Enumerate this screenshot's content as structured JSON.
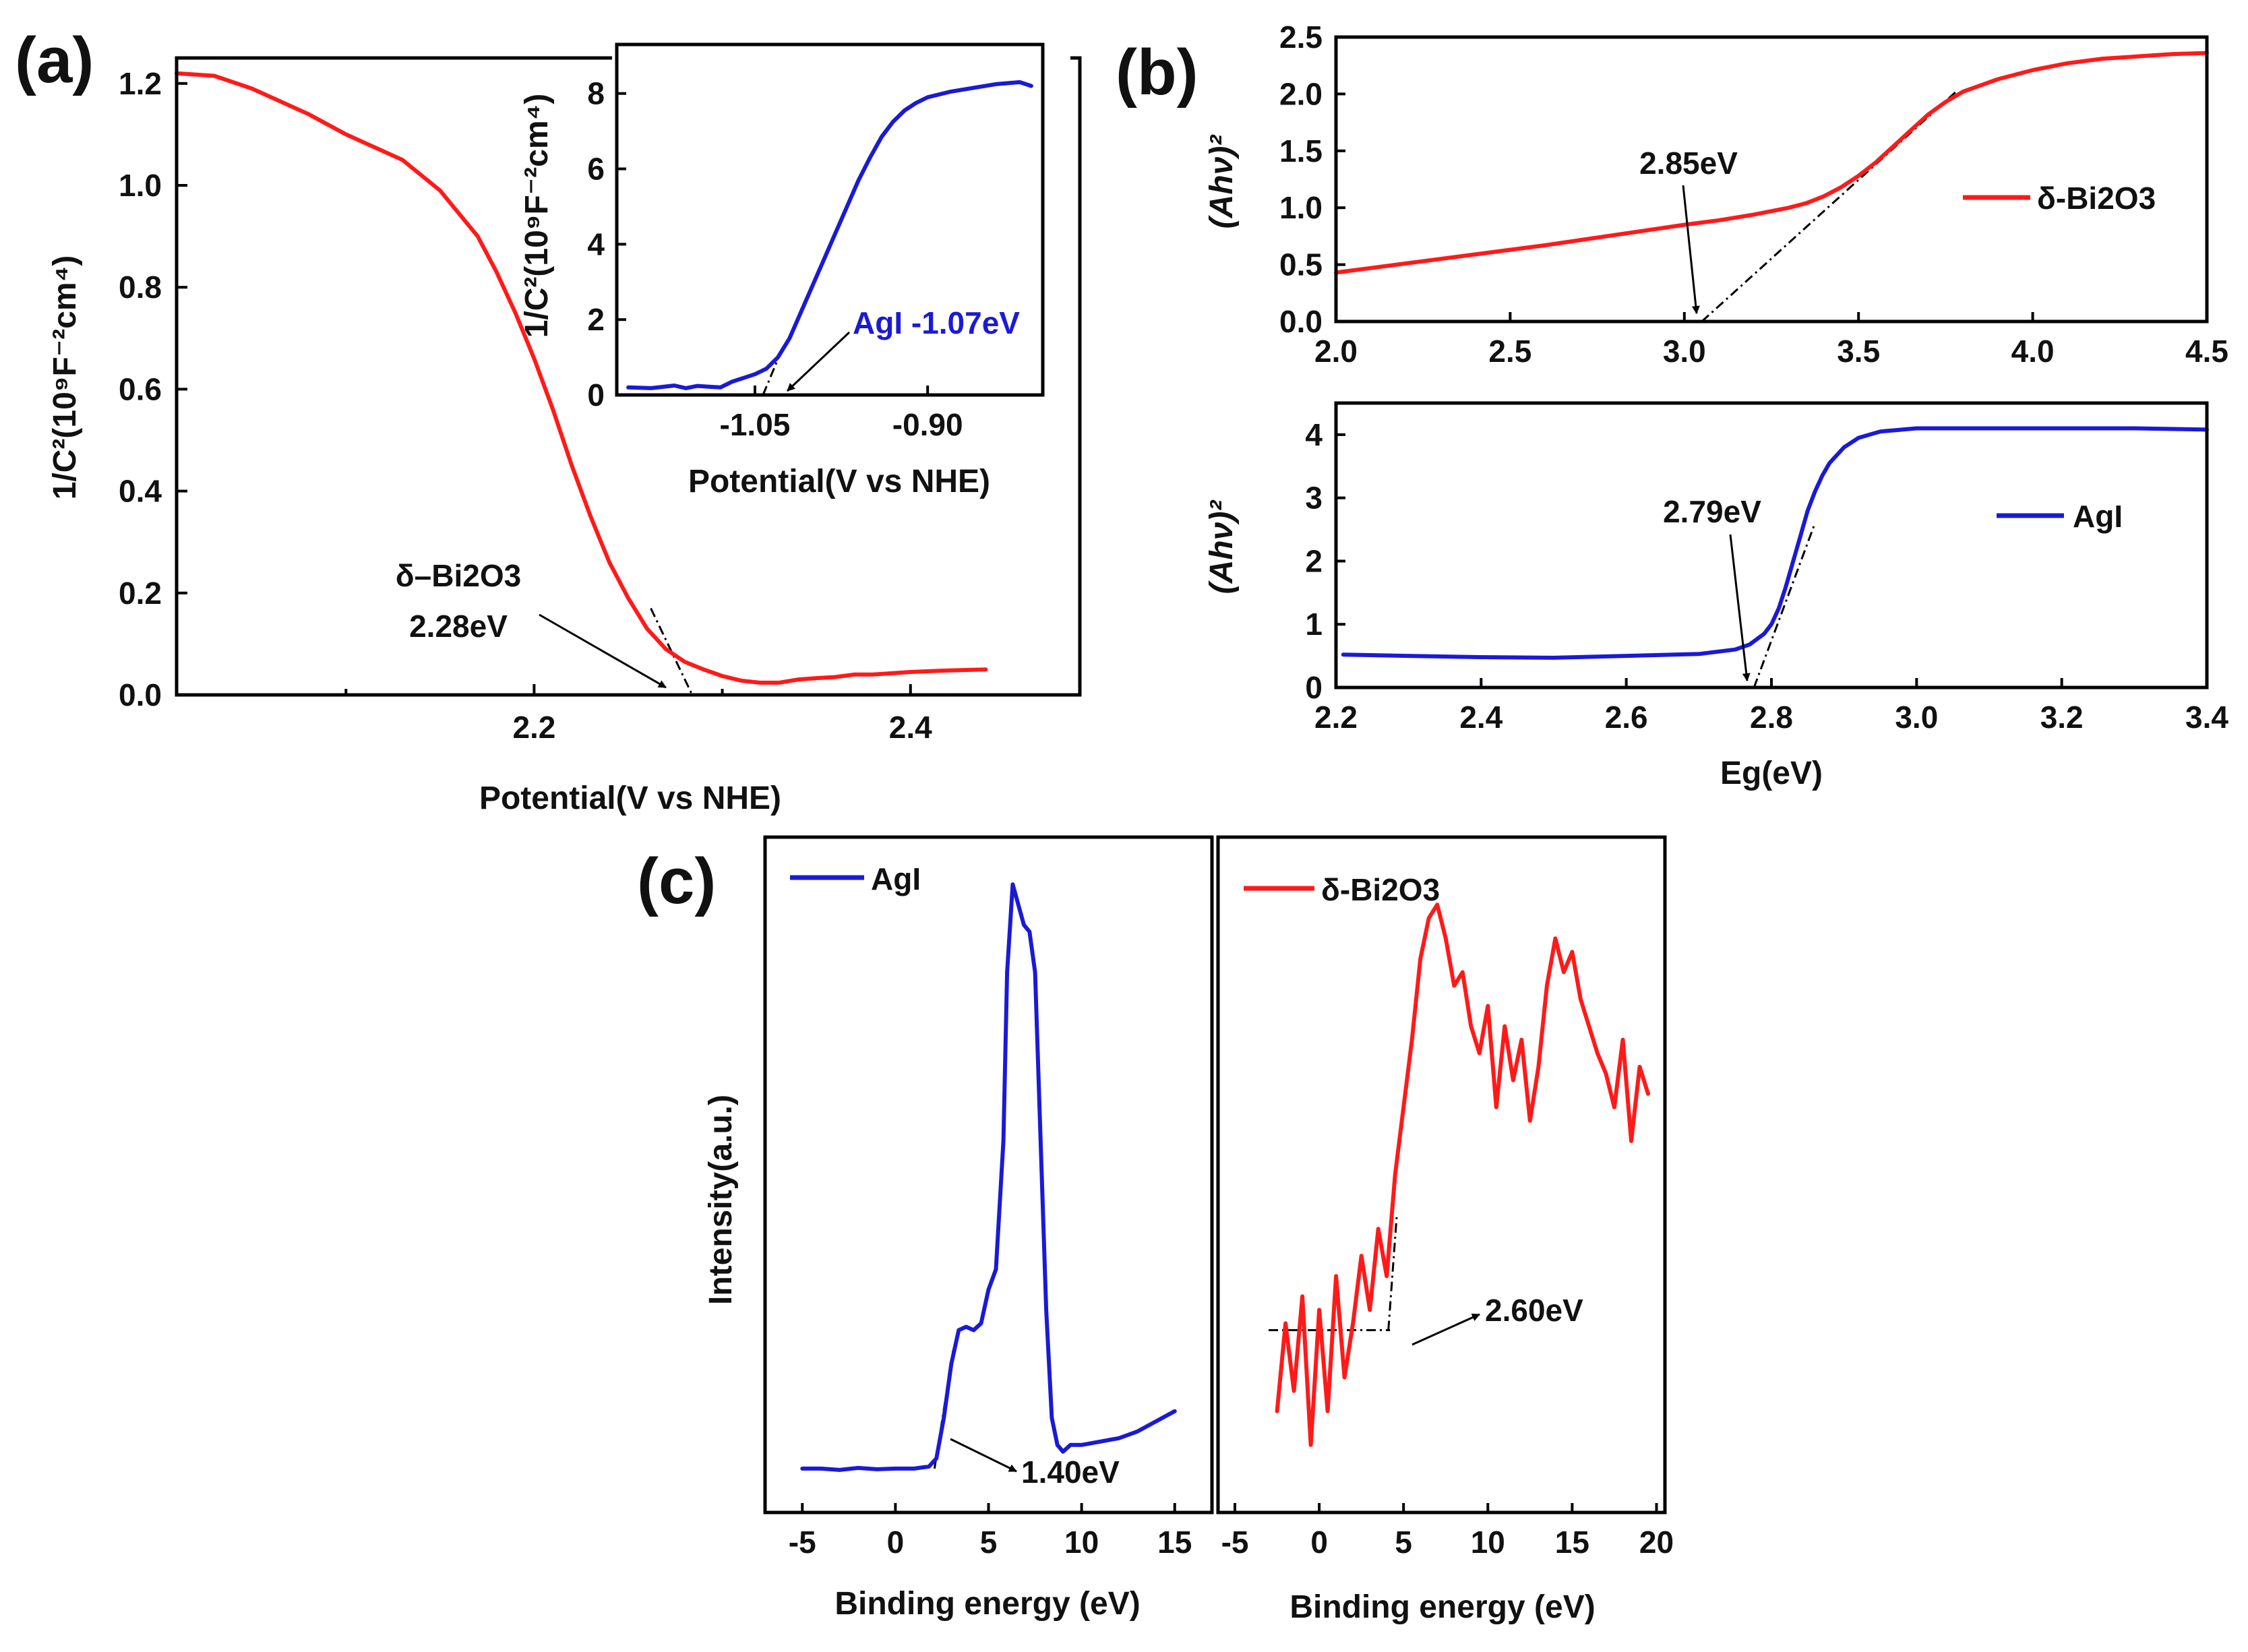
{
  "panel_labels": {
    "a": "(a)",
    "b": "(b)",
    "c": "(c)"
  },
  "colors": {
    "red": "#ff1a1a",
    "blue": "#1a1ad6"
  },
  "chart_data": [
    {
      "id": "a_main",
      "type": "line",
      "title": "",
      "xlabel": "Potential(V vs NHE)",
      "ylabel": "1/C²(10⁹F⁻²cm⁴)",
      "xlim": [
        2.01,
        2.49
      ],
      "ylim": [
        0,
        1.25
      ],
      "xticks": [
        2.2,
        2.4
      ],
      "xtick_labels": [
        "2.2",
        "2.4"
      ],
      "xminor": [
        2.1,
        2.3
      ],
      "yticks": [
        0.0,
        0.2,
        0.4,
        0.6,
        0.8,
        1.0,
        1.2
      ],
      "ytick_labels": [
        "0.0",
        "0.2",
        "0.4",
        "0.6",
        "0.8",
        "1.0",
        "1.2"
      ],
      "series": [
        {
          "name": "δ-Bi2O3",
          "color": "#ff1a1a",
          "x": [
            2.01,
            2.03,
            2.05,
            2.08,
            2.1,
            2.13,
            2.15,
            2.17,
            2.18,
            2.19,
            2.2,
            2.21,
            2.22,
            2.23,
            2.24,
            2.25,
            2.26,
            2.27,
            2.28,
            2.29,
            2.3,
            2.31,
            2.32,
            2.33,
            2.34,
            2.35,
            2.36,
            2.37,
            2.38,
            2.4,
            2.42,
            2.44
          ],
          "y": [
            1.22,
            1.215,
            1.19,
            1.14,
            1.1,
            1.05,
            0.99,
            0.9,
            0.83,
            0.75,
            0.66,
            0.56,
            0.45,
            0.35,
            0.26,
            0.19,
            0.13,
            0.09,
            0.065,
            0.05,
            0.037,
            0.028,
            0.024,
            0.024,
            0.03,
            0.033,
            0.035,
            0.04,
            0.04,
            0.045,
            0.048,
            0.05
          ]
        }
      ],
      "extrapolation": {
        "x": [
          2.262,
          2.284
        ],
        "y": [
          0.17,
          0.0
        ]
      },
      "annotations": [
        {
          "text": "δ–Bi2O3",
          "target": [
            2.283,
            0.0
          ]
        },
        {
          "text": "2.28eV"
        }
      ]
    },
    {
      "id": "a_inset",
      "type": "line",
      "xlabel": "Potential(V vs NHE)",
      "ylabel": "1/C²(10⁹F⁻²cm⁴)",
      "xlim": [
        -1.17,
        -0.8
      ],
      "ylim": [
        0,
        9.3
      ],
      "xticks": [
        -1.05,
        -0.9
      ],
      "xtick_labels": [
        "-1.05",
        "-0.90"
      ],
      "yticks": [
        0,
        2,
        4,
        6,
        8
      ],
      "ytick_labels": [
        "0",
        "2",
        "4",
        "6",
        "8"
      ],
      "series": [
        {
          "name": "AgI",
          "color": "#1a1ad6",
          "x": [
            -1.16,
            -1.14,
            -1.12,
            -1.11,
            -1.1,
            -1.09,
            -1.08,
            -1.07,
            -1.06,
            -1.05,
            -1.04,
            -1.03,
            -1.02,
            -1.01,
            -1.0,
            -0.99,
            -0.98,
            -0.97,
            -0.96,
            -0.95,
            -0.94,
            -0.93,
            -0.92,
            -0.91,
            -0.9,
            -0.88,
            -0.86,
            -0.84,
            -0.82,
            -0.81
          ],
          "y": [
            0.2,
            0.18,
            0.25,
            0.18,
            0.24,
            0.22,
            0.2,
            0.35,
            0.45,
            0.55,
            0.7,
            1.0,
            1.5,
            2.2,
            2.9,
            3.6,
            4.3,
            5.0,
            5.7,
            6.3,
            6.85,
            7.25,
            7.55,
            7.75,
            7.9,
            8.05,
            8.15,
            8.25,
            8.3,
            8.2
          ]
        }
      ],
      "extrapolation": {
        "x": [
          -1.043,
          -1.028
        ],
        "y": [
          0.0,
          1.1
        ]
      },
      "annotations": [
        {
          "text": "AgI -1.07eV",
          "target": [
            -1.045,
            0.0
          ]
        }
      ]
    },
    {
      "id": "b_top",
      "type": "line",
      "xlabel": "",
      "ylabel": "(Ahν)²",
      "xlim": [
        2.0,
        4.5
      ],
      "ylim": [
        0,
        2.5
      ],
      "xticks": [
        2.0,
        2.5,
        3.0,
        3.5,
        4.0,
        4.5
      ],
      "xtick_labels": [
        "2.0",
        "2.5",
        "3.0",
        "3.5",
        "4.0",
        "4.5"
      ],
      "yticks": [
        0.0,
        0.5,
        1.0,
        1.5,
        2.0,
        2.5
      ],
      "ytick_labels": [
        "0.0",
        "0.5",
        "1.0",
        "1.5",
        "2.0",
        "2.5"
      ],
      "legend": {
        "label": "δ-Bi2O3",
        "position": "right"
      },
      "series": [
        {
          "name": "δ-Bi2O3",
          "color": "#ff1a1a",
          "x": [
            2.0,
            2.2,
            2.4,
            2.6,
            2.8,
            3.0,
            3.1,
            3.2,
            3.3,
            3.35,
            3.4,
            3.45,
            3.5,
            3.55,
            3.6,
            3.65,
            3.7,
            3.75,
            3.8,
            3.9,
            4.0,
            4.1,
            4.2,
            4.3,
            4.4,
            4.5
          ],
          "y": [
            0.43,
            0.51,
            0.59,
            0.67,
            0.76,
            0.85,
            0.89,
            0.94,
            1.0,
            1.04,
            1.1,
            1.18,
            1.28,
            1.4,
            1.54,
            1.68,
            1.82,
            1.93,
            2.02,
            2.13,
            2.21,
            2.27,
            2.31,
            2.33,
            2.35,
            2.36
          ]
        }
      ],
      "extrapolation": {
        "x": [
          3.05,
          3.78
        ],
        "y": [
          0.0,
          2.02
        ]
      },
      "annotations": [
        {
          "text": "2.85eV",
          "target": [
            3.05,
            0.0
          ]
        }
      ]
    },
    {
      "id": "b_bottom",
      "type": "line",
      "xlabel": "Eg(eV)",
      "ylabel": "(Ahν)²",
      "xlim": [
        2.2,
        3.4
      ],
      "ylim": [
        0,
        4.5
      ],
      "xticks": [
        2.2,
        2.4,
        2.6,
        2.8,
        3.0,
        3.2,
        3.4
      ],
      "xtick_labels": [
        "2.2",
        "2.4",
        "2.6",
        "2.8",
        "3.0",
        "3.2",
        "3.4"
      ],
      "yticks": [
        0,
        1,
        2,
        3,
        4
      ],
      "ytick_labels": [
        "0",
        "1",
        "2",
        "3",
        "4"
      ],
      "legend": {
        "label": "AgI",
        "position": "right"
      },
      "series": [
        {
          "name": "AgI",
          "color": "#1a1ad6",
          "x": [
            2.21,
            2.3,
            2.4,
            2.5,
            2.6,
            2.7,
            2.75,
            2.77,
            2.79,
            2.8,
            2.81,
            2.82,
            2.83,
            2.84,
            2.85,
            2.86,
            2.87,
            2.88,
            2.9,
            2.92,
            2.95,
            3.0,
            3.1,
            3.2,
            3.3,
            3.4
          ],
          "y": [
            0.52,
            0.5,
            0.48,
            0.47,
            0.5,
            0.53,
            0.6,
            0.68,
            0.85,
            1.0,
            1.25,
            1.6,
            2.0,
            2.4,
            2.8,
            3.1,
            3.35,
            3.55,
            3.8,
            3.95,
            4.05,
            4.1,
            4.1,
            4.1,
            4.1,
            4.08
          ]
        }
      ],
      "extrapolation": {
        "x": [
          2.776,
          2.86
        ],
        "y": [
          0.0,
          2.6
        ]
      },
      "annotations": [
        {
          "text": "2.79eV",
          "target": [
            2.775,
            0.0
          ]
        }
      ]
    },
    {
      "id": "c_left",
      "type": "line",
      "xlabel": "Binding energy (eV)",
      "ylabel": "Intensity(a.u.)",
      "xlim": [
        -7,
        17
      ],
      "ylim": [
        0,
        1
      ],
      "xticks": [
        -5,
        0,
        5,
        10,
        15
      ],
      "xtick_labels": [
        "-5",
        "0",
        "5",
        "10",
        "15"
      ],
      "legend": {
        "label": "AgI",
        "position": "top-left"
      },
      "series": [
        {
          "name": "AgI",
          "color": "#1a1ad6",
          "x": [
            -5,
            -4,
            -3,
            -2,
            -1,
            0,
            1,
            1.8,
            2.2,
            2.6,
            3.0,
            3.4,
            3.8,
            4.2,
            4.6,
            5.0,
            5.4,
            5.8,
            6.0,
            6.3,
            6.6,
            6.9,
            7.2,
            7.5,
            7.8,
            8.1,
            8.4,
            8.7,
            9.0,
            9.4,
            10,
            11,
            12,
            13,
            14,
            15
          ],
          "y": [
            0.065,
            0.065,
            0.063,
            0.066,
            0.064,
            0.065,
            0.065,
            0.068,
            0.08,
            0.14,
            0.22,
            0.27,
            0.275,
            0.27,
            0.28,
            0.33,
            0.36,
            0.55,
            0.8,
            0.93,
            0.9,
            0.87,
            0.86,
            0.8,
            0.55,
            0.3,
            0.14,
            0.1,
            0.09,
            0.1,
            0.1,
            0.105,
            0.11,
            0.12,
            0.135,
            0.15
          ]
        }
      ],
      "extrapolation": {
        "x": [
          2.1,
          3.1
        ],
        "y": [
          0.065,
          0.24
        ]
      },
      "annotations": [
        {
          "text": "1.40eV",
          "target": [
            2.4,
            0.065
          ]
        }
      ]
    },
    {
      "id": "c_right",
      "type": "line",
      "xlabel": "Binding energy (eV)",
      "ylabel": "",
      "xlim": [
        -6,
        20.5
      ],
      "ylim": [
        0,
        1
      ],
      "xticks": [
        -5,
        0,
        5,
        10,
        15,
        20
      ],
      "xtick_labels": [
        "-5",
        "0",
        "5",
        "10",
        "15",
        "20"
      ],
      "legend": {
        "label": "δ-Bi2O3",
        "position": "top-left"
      },
      "series": [
        {
          "name": "δ-Bi2O3",
          "color": "#ff1a1a",
          "x": [
            -2.5,
            -2,
            -1.5,
            -1,
            -0.5,
            0,
            0.5,
            1,
            1.5,
            2,
            2.5,
            3,
            3.5,
            4,
            4.5,
            5,
            5.5,
            6,
            6.5,
            7,
            7.5,
            8,
            8.5,
            9,
            9.5,
            10,
            10.5,
            11,
            11.5,
            12,
            12.5,
            13,
            13.5,
            14,
            14.5,
            15,
            15.5,
            16,
            16.5,
            17,
            17.5,
            18,
            18.5,
            19,
            19.5
          ],
          "y": [
            0.15,
            0.28,
            0.18,
            0.32,
            0.1,
            0.3,
            0.15,
            0.35,
            0.2,
            0.28,
            0.38,
            0.3,
            0.42,
            0.35,
            0.5,
            0.6,
            0.7,
            0.82,
            0.88,
            0.9,
            0.85,
            0.78,
            0.8,
            0.72,
            0.68,
            0.75,
            0.6,
            0.72,
            0.64,
            0.7,
            0.58,
            0.66,
            0.78,
            0.85,
            0.8,
            0.83,
            0.76,
            0.72,
            0.68,
            0.65,
            0.6,
            0.7,
            0.55,
            0.66,
            0.62
          ]
        }
      ],
      "extrapolation": {
        "x": [
          -3,
          4.2
        ],
        "y": [
          0.27,
          0.27
        ]
      },
      "extrapolation2": {
        "x": [
          4.1,
          4.6
        ],
        "y": [
          0.27,
          0.44
        ]
      },
      "annotations": [
        {
          "text": "2.60eV",
          "target": [
            4.2,
            0.27
          ]
        }
      ]
    }
  ]
}
